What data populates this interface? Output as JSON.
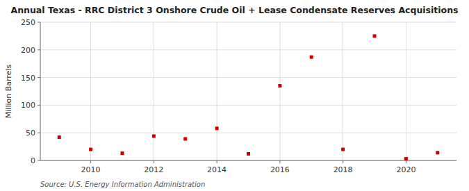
{
  "chart_data": {
    "type": "scatter",
    "title": "Annual Texas - RRC District 3 Onshore Crude Oil + Lease Condensate Reserves Acquisitions",
    "ylabel": "Million Barrels",
    "annotation": "Source: U.S. Energy Information Administration",
    "x": [
      2009,
      2010,
      2011,
      2012,
      2013,
      2014,
      2015,
      2016,
      2017,
      2018,
      2019,
      2020,
      2021
    ],
    "values": [
      42,
      20,
      13,
      44,
      39,
      58,
      12,
      135,
      187,
      20,
      225,
      3,
      14
    ],
    "color": "#cc0000",
    "marker": "square",
    "grid": true,
    "xlim": [
      2008.4,
      2021.6
    ],
    "ylim": [
      0,
      250
    ],
    "xticks": [
      2010,
      2012,
      2014,
      2016,
      2018,
      2020
    ],
    "yticks": [
      0,
      50,
      100,
      150,
      200,
      250
    ]
  }
}
